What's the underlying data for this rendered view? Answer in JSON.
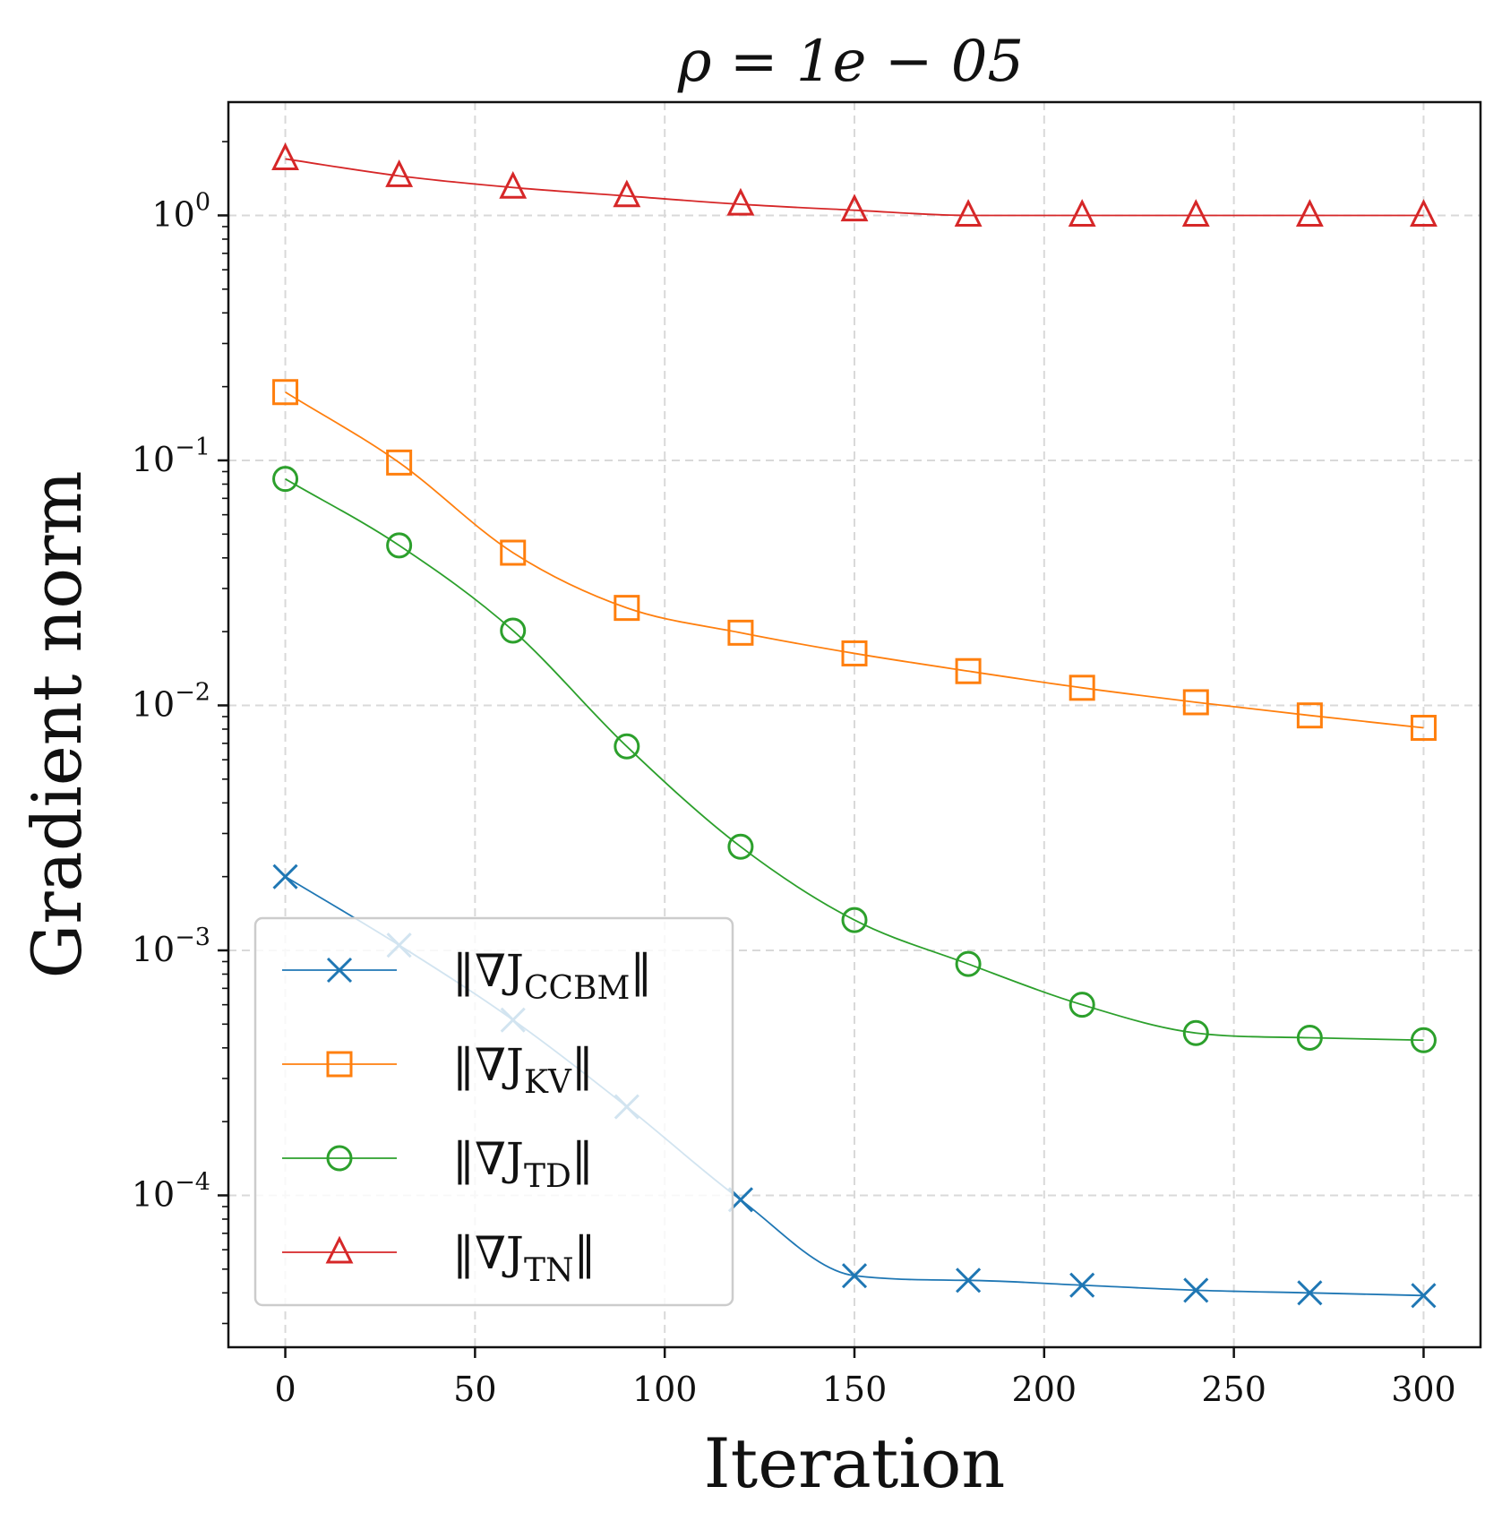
{
  "chart_data": {
    "type": "line",
    "title": "ρ = 1e − 05",
    "xlabel": "Iteration",
    "ylabel": "Gradient norm",
    "yscale": "log",
    "xlim": [
      -15,
      315
    ],
    "ylim": [
      2.4e-05,
      2.9
    ],
    "grid": true,
    "legend_position": "lower-left",
    "x_ticks": [
      0,
      50,
      100,
      150,
      200,
      250,
      300
    ],
    "x_tick_labels": [
      "0",
      "50",
      "100",
      "150",
      "200",
      "250",
      "300"
    ],
    "y_ticks": [
      0.0001,
      0.001,
      0.01,
      0.1,
      1
    ],
    "y_tick_labels": [
      {
        "base": "10",
        "exp": "−4"
      },
      {
        "base": "10",
        "exp": "−3"
      },
      {
        "base": "10",
        "exp": "−2"
      },
      {
        "base": "10",
        "exp": "−1"
      },
      {
        "base": "10",
        "exp": "0"
      }
    ],
    "x": [
      0,
      30,
      60,
      90,
      120,
      150,
      180,
      210,
      240,
      270,
      300
    ],
    "series": [
      {
        "name": "CCBM",
        "legend_prefix": "‖∇J",
        "legend_sub": "CCBM",
        "legend_suffix": "‖",
        "color": "#1f77b4",
        "marker": "x",
        "values": [
          0.002,
          0.00105,
          0.00052,
          0.00023,
          9.6e-05,
          4.7e-05,
          4.5e-05,
          4.3e-05,
          4.1e-05,
          4e-05,
          3.9e-05
        ]
      },
      {
        "name": "KV",
        "legend_prefix": "‖∇J",
        "legend_sub": "KV",
        "legend_suffix": "‖",
        "color": "#ff7f0e",
        "marker": "square",
        "values": [
          0.19,
          0.098,
          0.042,
          0.025,
          0.0198,
          0.0163,
          0.0138,
          0.0118,
          0.0103,
          0.0091,
          0.0081
        ]
      },
      {
        "name": "TD",
        "legend_prefix": "‖∇J",
        "legend_sub": "TD",
        "legend_suffix": "‖",
        "color": "#2ca02c",
        "marker": "circle",
        "values": [
          0.084,
          0.045,
          0.0202,
          0.0068,
          0.00265,
          0.00133,
          0.00088,
          0.0006,
          0.00046,
          0.00044,
          0.00043
        ]
      },
      {
        "name": "TN",
        "legend_prefix": "‖∇J",
        "legend_sub": "TN",
        "legend_suffix": "‖",
        "color": "#d62728",
        "marker": "triangle",
        "values": [
          1.7,
          1.45,
          1.3,
          1.2,
          1.11,
          1.05,
          1.0,
          1.0,
          1.0,
          1.0,
          1.0
        ]
      }
    ]
  }
}
